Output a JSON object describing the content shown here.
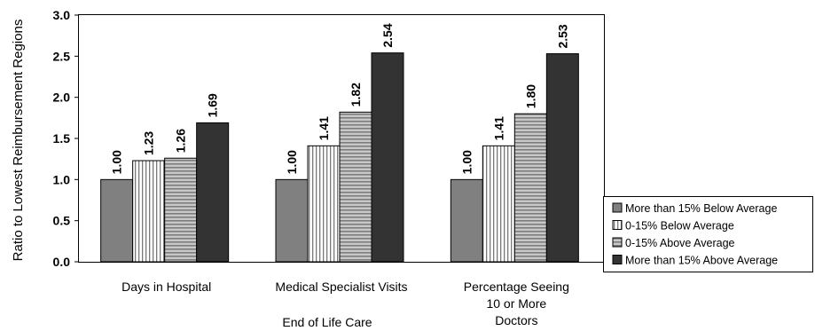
{
  "chart_data": {
    "type": "bar",
    "title": "",
    "ylabel": "Ratio to Lowest Reimbursement Regions",
    "xlabel": "End of Life Care",
    "ylim": [
      0,
      3.0
    ],
    "yticks": [
      "0.0",
      "0.5",
      "1.0",
      "1.5",
      "2.0",
      "2.5",
      "3.0"
    ],
    "categories": [
      [
        "Days in Hospital"
      ],
      [
        "Medical Specialist Visits"
      ],
      [
        "Percentage Seeing",
        "10 or More",
        "Doctors"
      ]
    ],
    "series": [
      {
        "name": "More than 15% Below Average",
        "values": [
          1.0,
          1.0,
          1.0
        ],
        "labels": [
          "1.00",
          "1.00",
          "1.00"
        ],
        "color": "#808080",
        "pattern": "solid"
      },
      {
        "name": "0-15% Below Average",
        "values": [
          1.23,
          1.41,
          1.41
        ],
        "labels": [
          "1.23",
          "1.41",
          "1.41"
        ],
        "color": "#ffffff",
        "pattern": "vertical-stripes"
      },
      {
        "name": "0-15% Above Average",
        "values": [
          1.26,
          1.82,
          1.8
        ],
        "labels": [
          "1.26",
          "1.82",
          "1.80"
        ],
        "color": "#a6a6a6",
        "pattern": "horizontal-stripes"
      },
      {
        "name": "More than 15% Above Average",
        "values": [
          1.69,
          2.54,
          2.53
        ],
        "labels": [
          "1.69",
          "2.54",
          "2.53"
        ],
        "color": "#333333",
        "pattern": "solid"
      }
    ],
    "legend": "right",
    "grid": false
  }
}
